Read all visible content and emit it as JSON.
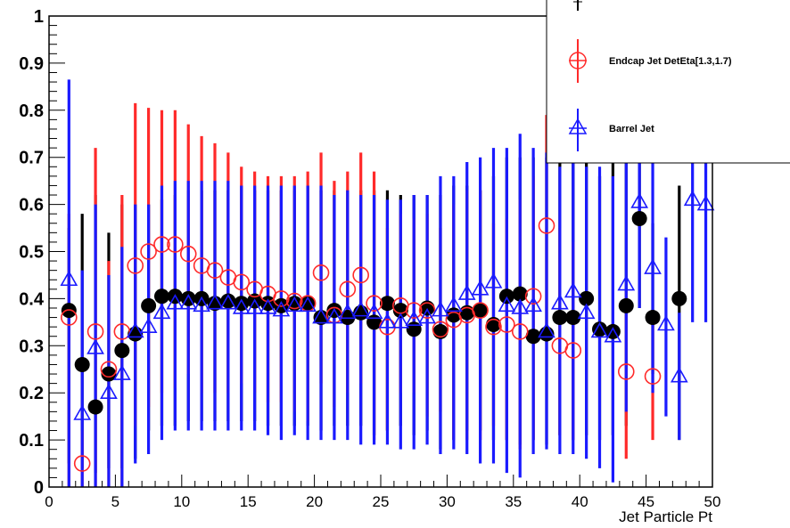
{
  "chart_data": {
    "type": "scatter",
    "xlabel": "Jet Particle Pt",
    "ylabel": "",
    "xlim": [
      0,
      50
    ],
    "ylim": [
      0,
      1
    ],
    "x_ticks": [
      "0",
      "5",
      "10",
      "15",
      "20",
      "25",
      "30",
      "35",
      "40",
      "45",
      "50"
    ],
    "y_ticks": [
      "0",
      "0.1",
      "0.2",
      "0.3",
      "0.4",
      "0.5",
      "0.6",
      "0.7",
      "0.8",
      "0.9",
      "1"
    ],
    "legend_position": "top-right",
    "series": [
      {
        "key": "black",
        "color": "#000000",
        "marker": "filled-circle",
        "points": [
          [
            1.5,
            0.375,
            0.05,
            0.55
          ],
          [
            2.5,
            0.26,
            0.04,
            0.58
          ],
          [
            3.5,
            0.17,
            0.03,
            0.62
          ],
          [
            4.5,
            0.24,
            0.04,
            0.54
          ],
          [
            5.5,
            0.29,
            0.04,
            0.6
          ],
          [
            6.5,
            0.325,
            0.06,
            0.6
          ],
          [
            7.5,
            0.385,
            0.12,
            0.6
          ],
          [
            8.5,
            0.405,
            0.13,
            0.61
          ],
          [
            9.5,
            0.405,
            0.13,
            0.62
          ],
          [
            10.5,
            0.4,
            0.14,
            0.63
          ],
          [
            11.5,
            0.4,
            0.14,
            0.63
          ],
          [
            12.5,
            0.39,
            0.14,
            0.63
          ],
          [
            13.5,
            0.395,
            0.14,
            0.63
          ],
          [
            14.5,
            0.39,
            0.14,
            0.64
          ],
          [
            15.5,
            0.395,
            0.14,
            0.63
          ],
          [
            16.5,
            0.39,
            0.13,
            0.63
          ],
          [
            17.5,
            0.385,
            0.13,
            0.63
          ],
          [
            18.5,
            0.39,
            0.13,
            0.63
          ],
          [
            19.5,
            0.39,
            0.13,
            0.64
          ],
          [
            20.5,
            0.36,
            0.12,
            0.63
          ],
          [
            21.5,
            0.375,
            0.13,
            0.63
          ],
          [
            22.5,
            0.36,
            0.13,
            0.63
          ],
          [
            23.5,
            0.37,
            0.13,
            0.63
          ],
          [
            24.5,
            0.35,
            0.11,
            0.63
          ],
          [
            25.5,
            0.39,
            0.12,
            0.63
          ],
          [
            26.5,
            0.375,
            0.13,
            0.62
          ],
          [
            27.5,
            0.335,
            0.11,
            0.62
          ],
          [
            28.5,
            0.38,
            0.12,
            0.62
          ],
          [
            29.5,
            0.33,
            0.08,
            0.62
          ],
          [
            30.5,
            0.365,
            0.1,
            0.64
          ],
          [
            31.5,
            0.37,
            0.12,
            0.64
          ],
          [
            32.5,
            0.375,
            0.12,
            0.63
          ],
          [
            33.5,
            0.345,
            0.1,
            0.66
          ],
          [
            34.5,
            0.405,
            0.1,
            0.7
          ],
          [
            35.5,
            0.41,
            0.09,
            0.7
          ],
          [
            36.5,
            0.32,
            0.1,
            0.7
          ],
          [
            37.5,
            0.325,
            0.09,
            0.7
          ],
          [
            38.5,
            0.36,
            0.11,
            0.74
          ],
          [
            39.5,
            0.36,
            0.1,
            0.71
          ],
          [
            40.5,
            0.4,
            0.11,
            0.76
          ],
          [
            41.5,
            0.335,
            0.1,
            0.66
          ],
          [
            42.5,
            0.33,
            0.11,
            0.7
          ],
          [
            43.5,
            0.385,
            0.13,
            0.72
          ],
          [
            44.5,
            0.57,
            0.38,
            0.77
          ],
          [
            45.5,
            0.36,
            0.24,
            0.56
          ],
          [
            47.5,
            0.4,
            0.1,
            0.64
          ]
        ]
      },
      {
        "key": "red",
        "name": "Endcap Jet DetEta[1.3,1.7)",
        "color": "#ff2a2a",
        "marker": "open-circle",
        "points": [
          [
            1.5,
            0.36,
            0.0,
            0.58
          ],
          [
            2.5,
            0.05,
            0.0,
            0.12
          ],
          [
            3.5,
            0.33,
            0.0,
            0.72
          ],
          [
            4.5,
            0.25,
            0.0,
            0.48
          ],
          [
            5.5,
            0.33,
            0.0,
            0.62
          ],
          [
            6.5,
            0.47,
            0.13,
            0.815
          ],
          [
            7.5,
            0.5,
            0.17,
            0.805
          ],
          [
            8.5,
            0.515,
            0.2,
            0.8
          ],
          [
            9.5,
            0.515,
            0.21,
            0.8
          ],
          [
            10.5,
            0.495,
            0.24,
            0.77
          ],
          [
            11.5,
            0.47,
            0.2,
            0.745
          ],
          [
            12.5,
            0.46,
            0.2,
            0.73
          ],
          [
            13.5,
            0.445,
            0.2,
            0.71
          ],
          [
            14.5,
            0.435,
            0.22,
            0.68
          ],
          [
            15.5,
            0.42,
            0.2,
            0.67
          ],
          [
            16.5,
            0.41,
            0.18,
            0.66
          ],
          [
            17.5,
            0.4,
            0.18,
            0.66
          ],
          [
            18.5,
            0.395,
            0.16,
            0.66
          ],
          [
            19.5,
            0.39,
            0.14,
            0.67
          ],
          [
            20.5,
            0.455,
            0.22,
            0.71
          ],
          [
            21.5,
            0.365,
            0.17,
            0.65
          ],
          [
            22.5,
            0.42,
            0.2,
            0.67
          ],
          [
            23.5,
            0.45,
            0.22,
            0.71
          ],
          [
            24.5,
            0.39,
            0.1,
            0.67
          ],
          [
            25.5,
            0.34,
            0.12,
            0.55
          ],
          [
            26.5,
            0.385,
            0.2,
            0.58
          ],
          [
            27.5,
            0.375,
            0.2,
            0.57
          ],
          [
            28.5,
            0.375,
            0.15,
            0.58
          ],
          [
            29.5,
            0.335,
            0.16,
            0.55
          ],
          [
            30.5,
            0.355,
            0.1,
            0.6
          ],
          [
            31.5,
            0.365,
            0.1,
            0.63
          ],
          [
            32.5,
            0.375,
            0.1,
            0.63
          ],
          [
            33.5,
            0.34,
            0.13,
            0.56
          ],
          [
            34.5,
            0.345,
            0.1,
            0.57
          ],
          [
            35.5,
            0.33,
            0.08,
            0.61
          ],
          [
            36.5,
            0.405,
            0.1,
            0.66
          ],
          [
            37.5,
            0.555,
            0.33,
            0.79
          ],
          [
            38.5,
            0.3,
            0.11,
            0.55
          ],
          [
            39.5,
            0.29,
            0.1,
            0.52
          ],
          [
            43.5,
            0.245,
            0.06,
            0.42
          ],
          [
            45.5,
            0.235,
            0.1,
            0.36
          ]
        ]
      },
      {
        "key": "blue",
        "name": "Barrel Jet",
        "color": "#1a1aff",
        "marker": "open-triangle",
        "points": [
          [
            1.5,
            0.44,
            0.0,
            0.865
          ],
          [
            2.5,
            0.155,
            0.0,
            0.46
          ],
          [
            3.5,
            0.295,
            0.0,
            0.6
          ],
          [
            4.5,
            0.2,
            0.0,
            0.45
          ],
          [
            5.5,
            0.24,
            0.0,
            0.51
          ],
          [
            6.5,
            0.33,
            0.05,
            0.6
          ],
          [
            7.5,
            0.34,
            0.07,
            0.6
          ],
          [
            8.5,
            0.37,
            0.1,
            0.64
          ],
          [
            9.5,
            0.39,
            0.12,
            0.65
          ],
          [
            10.5,
            0.39,
            0.12,
            0.65
          ],
          [
            11.5,
            0.385,
            0.12,
            0.65
          ],
          [
            12.5,
            0.39,
            0.12,
            0.65
          ],
          [
            13.5,
            0.39,
            0.12,
            0.65
          ],
          [
            14.5,
            0.38,
            0.12,
            0.64
          ],
          [
            15.5,
            0.38,
            0.12,
            0.64
          ],
          [
            16.5,
            0.38,
            0.11,
            0.64
          ],
          [
            17.5,
            0.375,
            0.1,
            0.64
          ],
          [
            18.5,
            0.385,
            0.11,
            0.64
          ],
          [
            19.5,
            0.385,
            0.1,
            0.64
          ],
          [
            20.5,
            0.36,
            0.1,
            0.64
          ],
          [
            21.5,
            0.36,
            0.1,
            0.62
          ],
          [
            22.5,
            0.37,
            0.1,
            0.63
          ],
          [
            23.5,
            0.375,
            0.09,
            0.62
          ],
          [
            24.5,
            0.37,
            0.09,
            0.62
          ],
          [
            25.5,
            0.35,
            0.09,
            0.61
          ],
          [
            26.5,
            0.35,
            0.08,
            0.61
          ],
          [
            27.5,
            0.355,
            0.08,
            0.62
          ],
          [
            28.5,
            0.36,
            0.09,
            0.62
          ],
          [
            29.5,
            0.375,
            0.07,
            0.66
          ],
          [
            30.5,
            0.385,
            0.08,
            0.66
          ],
          [
            31.5,
            0.41,
            0.07,
            0.69
          ],
          [
            32.5,
            0.42,
            0.05,
            0.7
          ],
          [
            33.5,
            0.435,
            0.05,
            0.72
          ],
          [
            34.5,
            0.385,
            0.03,
            0.72
          ],
          [
            35.5,
            0.38,
            0.02,
            0.75
          ],
          [
            36.5,
            0.385,
            0.07,
            0.72
          ],
          [
            37.5,
            0.33,
            0.08,
            0.71
          ],
          [
            38.5,
            0.39,
            0.07,
            0.68
          ],
          [
            39.5,
            0.415,
            0.07,
            0.7
          ],
          [
            40.5,
            0.37,
            0.06,
            0.68
          ],
          [
            41.5,
            0.33,
            0.04,
            0.68
          ],
          [
            42.5,
            0.32,
            0.01,
            0.66
          ],
          [
            43.5,
            0.43,
            0.16,
            0.72
          ],
          [
            44.5,
            0.605,
            0.38,
            0.8
          ],
          [
            45.5,
            0.465,
            0.2,
            0.73
          ],
          [
            46.5,
            0.345,
            0.15,
            0.53
          ],
          [
            47.5,
            0.235,
            0.1,
            0.37
          ],
          [
            48.5,
            0.61,
            0.35,
            0.8
          ],
          [
            49.5,
            0.6,
            0.35,
            0.8
          ]
        ]
      }
    ]
  }
}
